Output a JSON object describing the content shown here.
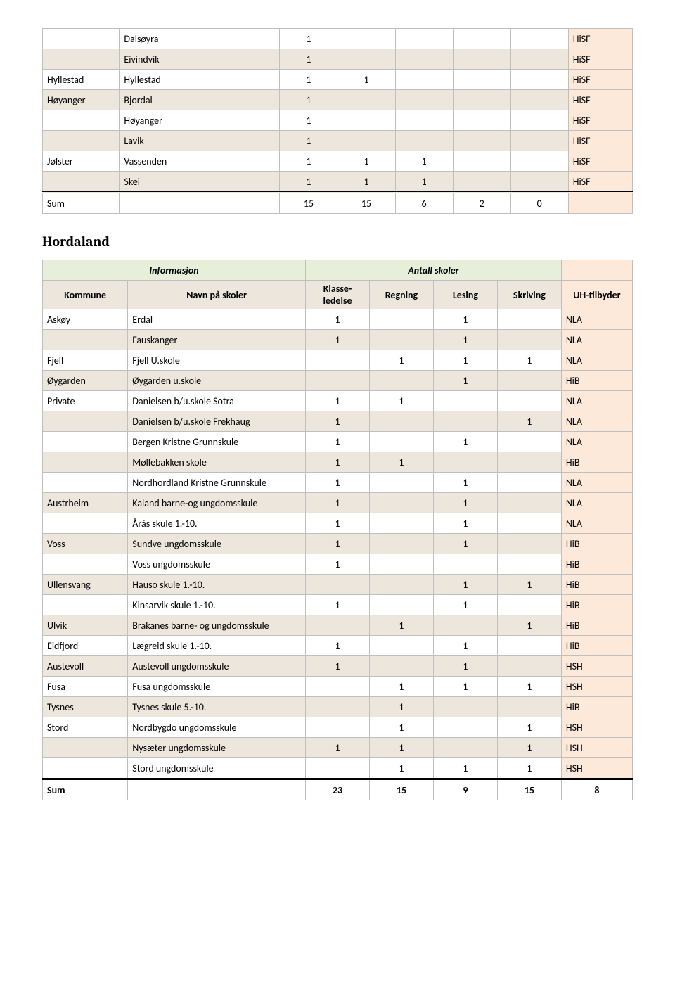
{
  "table1": {
    "rows": [
      {
        "k": "",
        "n": "Dalsøyra",
        "v": [
          "1",
          "",
          "",
          "",
          ""
        ],
        "uh": "HiSF"
      },
      {
        "k": "",
        "n": "Eivindvik",
        "v": [
          "1",
          "",
          "",
          "",
          ""
        ],
        "uh": "HiSF"
      },
      {
        "k": "Hyllestad",
        "n": "Hyllestad",
        "v": [
          "1",
          "1",
          "",
          "",
          ""
        ],
        "uh": "HiSF"
      },
      {
        "k": "Høyanger",
        "n": "Bjordal",
        "v": [
          "1",
          "",
          "",
          "",
          ""
        ],
        "uh": "HiSF"
      },
      {
        "k": "",
        "n": "Høyanger",
        "v": [
          "1",
          "",
          "",
          "",
          ""
        ],
        "uh": "HiSF"
      },
      {
        "k": "",
        "n": "Lavik",
        "v": [
          "1",
          "",
          "",
          "",
          ""
        ],
        "uh": "HiSF"
      },
      {
        "k": "Jølster",
        "n": "Vassenden",
        "v": [
          "1",
          "1",
          "1",
          "",
          ""
        ],
        "uh": "HiSF"
      },
      {
        "k": "",
        "n": "Skei",
        "v": [
          "1",
          "1",
          "1",
          "",
          ""
        ],
        "uh": "HiSF"
      }
    ],
    "sum": {
      "label": "Sum",
      "v": [
        "15",
        "15",
        "6",
        "2",
        "0"
      ]
    }
  },
  "heading": "Hordaland",
  "headers": {
    "info": "Informasjon",
    "antall": "Antall skoler",
    "kommune": "Kommune",
    "navn": "Navn på skoler",
    "klasse": "Klasse-ledelse",
    "regning": "Regning",
    "lesing": "Lesing",
    "skriving": "Skriving",
    "uh": "UH-tilbyder"
  },
  "table2": {
    "rows": [
      {
        "k": "Askøy",
        "n": "Erdal",
        "v": [
          "1",
          "",
          "1",
          ""
        ],
        "uh": "NLA"
      },
      {
        "k": "",
        "n": "Fauskanger",
        "v": [
          "1",
          "",
          "1",
          ""
        ],
        "uh": "NLA"
      },
      {
        "k": "Fjell",
        "n": "Fjell U.skole",
        "v": [
          "",
          "1",
          "1",
          "1"
        ],
        "uh": "NLA"
      },
      {
        "k": "Øygarden",
        "n": "Øygarden u.skole",
        "v": [
          "",
          "",
          "1",
          ""
        ],
        "uh": "HiB"
      },
      {
        "k": "Private",
        "n": "Danielsen b/u.skole Sotra",
        "v": [
          "1",
          "1",
          "",
          ""
        ],
        "uh": "NLA"
      },
      {
        "k": "",
        "n": "Danielsen b/u.skole Frekhaug",
        "v": [
          "1",
          "",
          "",
          "1"
        ],
        "uh": "NLA"
      },
      {
        "k": "",
        "n": "Bergen Kristne Grunnskule",
        "v": [
          "1",
          "",
          "1",
          ""
        ],
        "uh": "NLA"
      },
      {
        "k": "",
        "n": "Møllebakken skole",
        "v": [
          "1",
          "1",
          "",
          ""
        ],
        "uh": "HiB"
      },
      {
        "k": "",
        "n": "Nordhordland Kristne Grunnskule",
        "v": [
          "1",
          "",
          "1",
          ""
        ],
        "uh": "NLA"
      },
      {
        "k": "Austrheim",
        "n": "Kaland barne-og ungdomsskule",
        "v": [
          "1",
          "",
          "1",
          ""
        ],
        "uh": "NLA"
      },
      {
        "k": "",
        "n": "Årås skule 1.-10.",
        "v": [
          "1",
          "",
          "1",
          ""
        ],
        "uh": "NLA"
      },
      {
        "k": "Voss",
        "n": "Sundve ungdomsskule",
        "v": [
          "1",
          "",
          "1",
          ""
        ],
        "uh": "HiB"
      },
      {
        "k": "",
        "n": "Voss ungdomsskule",
        "v": [
          "1",
          "",
          "",
          ""
        ],
        "uh": "HiB"
      },
      {
        "k": "Ullensvang",
        "n": "Hauso skule 1.-10.",
        "v": [
          "",
          "",
          "1",
          "1"
        ],
        "uh": "HiB"
      },
      {
        "k": "",
        "n": "Kinsarvik skule 1.-10.",
        "v": [
          "1",
          "",
          "1",
          ""
        ],
        "uh": "HiB"
      },
      {
        "k": "Ulvik",
        "n": "Brakanes barne- og ungdomsskule",
        "v": [
          "",
          "1",
          "",
          "1"
        ],
        "uh": "HiB"
      },
      {
        "k": "Eidfjord",
        "n": "Lægreid skule 1.-10.",
        "v": [
          "1",
          "",
          "1",
          ""
        ],
        "uh": "HiB"
      },
      {
        "k": "Austevoll",
        "n": "Austevoll ungdomsskule",
        "v": [
          "1",
          "",
          "1",
          ""
        ],
        "uh": "HSH"
      },
      {
        "k": "Fusa",
        "n": "Fusa ungdomsskule",
        "v": [
          "",
          "1",
          "1",
          "1"
        ],
        "uh": "HSH"
      },
      {
        "k": "Tysnes",
        "n": "Tysnes skule 5.-10.",
        "v": [
          "",
          "1",
          "",
          ""
        ],
        "uh": "HiB"
      },
      {
        "k": "Stord",
        "n": "Nordbygdo ungdomsskule",
        "v": [
          "",
          "1",
          "",
          "1"
        ],
        "uh": "HSH"
      },
      {
        "k": "",
        "n": "Nysæter ungdomsskule",
        "v": [
          "1",
          "1",
          "",
          "1"
        ],
        "uh": "HSH"
      },
      {
        "k": "",
        "n": "Stord ungdomsskule",
        "v": [
          "",
          "1",
          "1",
          "1"
        ],
        "uh": "HSH"
      }
    ],
    "sum": {
      "label": "Sum",
      "v": [
        "23",
        "15",
        "9",
        "15",
        "8"
      ]
    }
  }
}
